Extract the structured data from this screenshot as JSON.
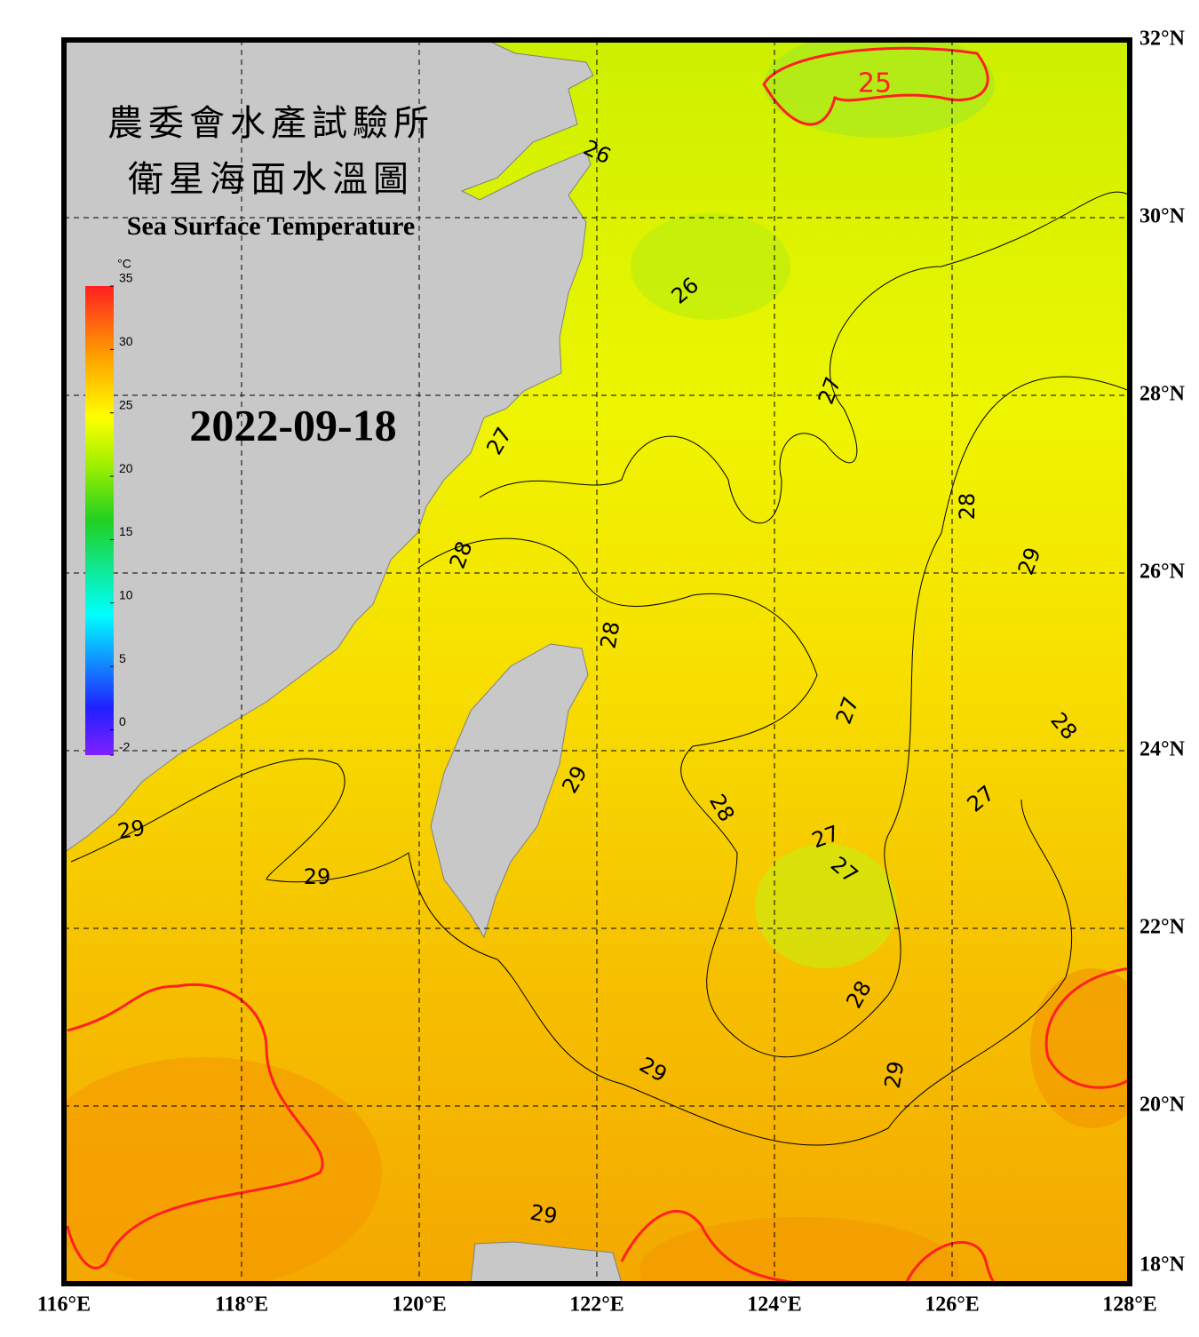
{
  "header": {
    "title_zh_1": "農委會水產試驗所",
    "title_zh_2": "衛星海面水溫圖",
    "title_en": "Sea Surface Temperature",
    "date": "2022-09-18"
  },
  "map": {
    "lon_range": [
      116,
      128
    ],
    "lat_range": [
      18,
      32
    ],
    "lon_ticks": [
      {
        "value": 116,
        "label": "116°E"
      },
      {
        "value": 118,
        "label": "118°E"
      },
      {
        "value": 120,
        "label": "120°E"
      },
      {
        "value": 122,
        "label": "122°E"
      },
      {
        "value": 124,
        "label": "124°E"
      },
      {
        "value": 126,
        "label": "126°E"
      },
      {
        "value": 128,
        "label": "128°E"
      }
    ],
    "lat_ticks": [
      {
        "value": 18,
        "label": "18°N"
      },
      {
        "value": 20,
        "label": "20°N"
      },
      {
        "value": 22,
        "label": "22°N"
      },
      {
        "value": 24,
        "label": "24°N"
      },
      {
        "value": 26,
        "label": "26°N"
      },
      {
        "value": 28,
        "label": "28°N"
      },
      {
        "value": 30,
        "label": "30°N"
      },
      {
        "value": 32,
        "label": "32°N"
      }
    ],
    "contour_labels": [
      25,
      26,
      26,
      27,
      27,
      28,
      28,
      29,
      28,
      27,
      28,
      29,
      28,
      27,
      27,
      27,
      29,
      29,
      28,
      29,
      29,
      29
    ]
  },
  "colorbar": {
    "unit": "°C",
    "range": [
      -2,
      35
    ],
    "ticks": [
      35,
      30,
      25,
      20,
      15,
      10,
      5,
      0,
      -2
    ]
  }
}
